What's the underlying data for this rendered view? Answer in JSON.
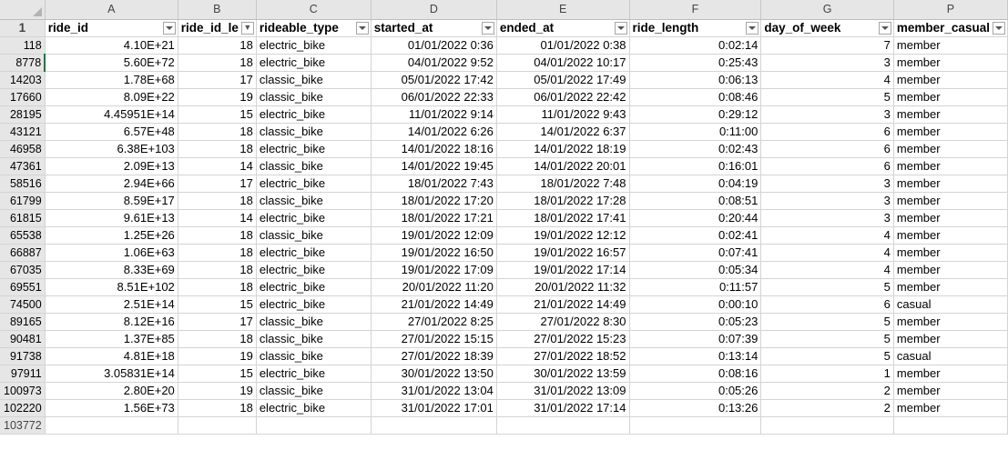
{
  "columns": [
    "A",
    "B",
    "C",
    "D",
    "E",
    "F",
    "G",
    "P"
  ],
  "header_row_number": "1",
  "headers": [
    {
      "label": "ride_id",
      "filter": "dropdown"
    },
    {
      "label": "ride_id_le",
      "filter": "filtered"
    },
    {
      "label": "rideable_type",
      "filter": "dropdown"
    },
    {
      "label": "started_at",
      "filter": "dropdown"
    },
    {
      "label": "ended_at",
      "filter": "dropdown"
    },
    {
      "label": "ride_length",
      "filter": "dropdown"
    },
    {
      "label": "day_of_week",
      "filter": "dropdown"
    },
    {
      "label": "member_casual",
      "filter": "dropdown"
    }
  ],
  "rows": [
    {
      "row": "118",
      "ride_id": "4.10E+21",
      "len": "18",
      "type": "electric_bike",
      "start": "01/01/2022 0:36",
      "end": "01/01/2022 0:38",
      "ride_length": "0:02:14",
      "dow": "7",
      "member": "member"
    },
    {
      "row": "8778",
      "ride_id": "5.60E+72",
      "len": "18",
      "type": "electric_bike",
      "start": "04/01/2022 9:52",
      "end": "04/01/2022 10:17",
      "ride_length": "0:25:43",
      "dow": "3",
      "member": "member"
    },
    {
      "row": "14203",
      "ride_id": "1.78E+68",
      "len": "17",
      "type": "classic_bike",
      "start": "05/01/2022 17:42",
      "end": "05/01/2022 17:49",
      "ride_length": "0:06:13",
      "dow": "4",
      "member": "member"
    },
    {
      "row": "17660",
      "ride_id": "8.09E+22",
      "len": "19",
      "type": "classic_bike",
      "start": "06/01/2022 22:33",
      "end": "06/01/2022 22:42",
      "ride_length": "0:08:46",
      "dow": "5",
      "member": "member"
    },
    {
      "row": "28195",
      "ride_id": "4.45951E+14",
      "len": "15",
      "type": "electric_bike",
      "start": "11/01/2022 9:14",
      "end": "11/01/2022 9:43",
      "ride_length": "0:29:12",
      "dow": "3",
      "member": "member"
    },
    {
      "row": "43121",
      "ride_id": "6.57E+48",
      "len": "18",
      "type": "classic_bike",
      "start": "14/01/2022 6:26",
      "end": "14/01/2022 6:37",
      "ride_length": "0:11:00",
      "dow": "6",
      "member": "member"
    },
    {
      "row": "46958",
      "ride_id": "6.38E+103",
      "len": "18",
      "type": "electric_bike",
      "start": "14/01/2022 18:16",
      "end": "14/01/2022 18:19",
      "ride_length": "0:02:43",
      "dow": "6",
      "member": "member"
    },
    {
      "row": "47361",
      "ride_id": "2.09E+13",
      "len": "14",
      "type": "classic_bike",
      "start": "14/01/2022 19:45",
      "end": "14/01/2022 20:01",
      "ride_length": "0:16:01",
      "dow": "6",
      "member": "member"
    },
    {
      "row": "58516",
      "ride_id": "2.94E+66",
      "len": "17",
      "type": "electric_bike",
      "start": "18/01/2022 7:43",
      "end": "18/01/2022 7:48",
      "ride_length": "0:04:19",
      "dow": "3",
      "member": "member"
    },
    {
      "row": "61799",
      "ride_id": "8.59E+17",
      "len": "18",
      "type": "classic_bike",
      "start": "18/01/2022 17:20",
      "end": "18/01/2022 17:28",
      "ride_length": "0:08:51",
      "dow": "3",
      "member": "member"
    },
    {
      "row": "61815",
      "ride_id": "9.61E+13",
      "len": "14",
      "type": "electric_bike",
      "start": "18/01/2022 17:21",
      "end": "18/01/2022 17:41",
      "ride_length": "0:20:44",
      "dow": "3",
      "member": "member"
    },
    {
      "row": "65538",
      "ride_id": "1.25E+26",
      "len": "18",
      "type": "classic_bike",
      "start": "19/01/2022 12:09",
      "end": "19/01/2022 12:12",
      "ride_length": "0:02:41",
      "dow": "4",
      "member": "member"
    },
    {
      "row": "66887",
      "ride_id": "1.06E+63",
      "len": "18",
      "type": "electric_bike",
      "start": "19/01/2022 16:50",
      "end": "19/01/2022 16:57",
      "ride_length": "0:07:41",
      "dow": "4",
      "member": "member"
    },
    {
      "row": "67035",
      "ride_id": "8.33E+69",
      "len": "18",
      "type": "electric_bike",
      "start": "19/01/2022 17:09",
      "end": "19/01/2022 17:14",
      "ride_length": "0:05:34",
      "dow": "4",
      "member": "member"
    },
    {
      "row": "69551",
      "ride_id": "8.51E+102",
      "len": "18",
      "type": "electric_bike",
      "start": "20/01/2022 11:20",
      "end": "20/01/2022 11:32",
      "ride_length": "0:11:57",
      "dow": "5",
      "member": "member"
    },
    {
      "row": "74500",
      "ride_id": "2.51E+14",
      "len": "15",
      "type": "electric_bike",
      "start": "21/01/2022 14:49",
      "end": "21/01/2022 14:49",
      "ride_length": "0:00:10",
      "dow": "6",
      "member": "casual"
    },
    {
      "row": "89165",
      "ride_id": "8.12E+16",
      "len": "17",
      "type": "classic_bike",
      "start": "27/01/2022 8:25",
      "end": "27/01/2022 8:30",
      "ride_length": "0:05:23",
      "dow": "5",
      "member": "member"
    },
    {
      "row": "90481",
      "ride_id": "1.37E+85",
      "len": "18",
      "type": "classic_bike",
      "start": "27/01/2022 15:15",
      "end": "27/01/2022 15:23",
      "ride_length": "0:07:39",
      "dow": "5",
      "member": "member"
    },
    {
      "row": "91738",
      "ride_id": "4.81E+18",
      "len": "19",
      "type": "classic_bike",
      "start": "27/01/2022 18:39",
      "end": "27/01/2022 18:52",
      "ride_length": "0:13:14",
      "dow": "5",
      "member": "casual"
    },
    {
      "row": "97911",
      "ride_id": "3.05831E+14",
      "len": "15",
      "type": "electric_bike",
      "start": "30/01/2022 13:50",
      "end": "30/01/2022 13:59",
      "ride_length": "0:08:16",
      "dow": "1",
      "member": "member"
    },
    {
      "row": "100973",
      "ride_id": "2.80E+20",
      "len": "19",
      "type": "classic_bike",
      "start": "31/01/2022 13:04",
      "end": "31/01/2022 13:09",
      "ride_length": "0:05:26",
      "dow": "2",
      "member": "member"
    },
    {
      "row": "102220",
      "ride_id": "1.56E+73",
      "len": "18",
      "type": "electric_bike",
      "start": "31/01/2022 17:01",
      "end": "31/01/2022 17:14",
      "ride_length": "0:13:26",
      "dow": "2",
      "member": "member"
    }
  ],
  "last_row_number": "103772",
  "colors": {
    "row_number_link": "#2f5ea8",
    "header_bg": "#e6e6e6",
    "gridline": "#d4d4d4",
    "selection": "#217346"
  }
}
